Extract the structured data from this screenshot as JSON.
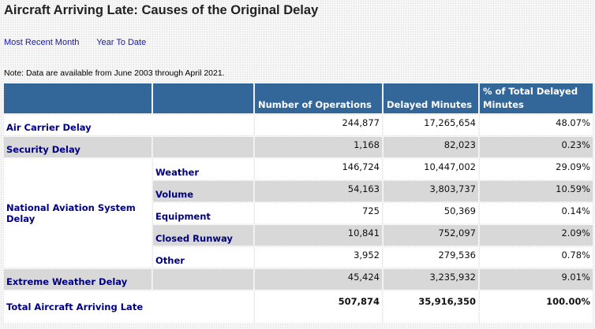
{
  "page": {
    "title": "Aircraft Arriving Late: Causes of the Original Delay",
    "links": [
      "Most Recent Month",
      "Year To Date"
    ],
    "note": "Note: Data are available from June 2003 through April 2021."
  },
  "table": {
    "headers": [
      "",
      "",
      "Number of Operations",
      "Delayed Minutes",
      "% of Total Delayed Minutes"
    ],
    "rows": {
      "air_carrier": {
        "label": "Air Carrier Delay",
        "ops": "244,877",
        "minutes": "17,265,654",
        "pct": "48.07%"
      },
      "security": {
        "label": "Security Delay",
        "ops": "1,168",
        "minutes": "82,023",
        "pct": "0.23%"
      },
      "nas": {
        "label": "National Aviation System Delay",
        "sub": [
          {
            "label": "Weather",
            "ops": "146,724",
            "minutes": "10,447,002",
            "pct": "29.09%"
          },
          {
            "label": "Volume",
            "ops": "54,163",
            "minutes": "3,803,737",
            "pct": "10.59%"
          },
          {
            "label": "Equipment",
            "ops": "725",
            "minutes": "50,369",
            "pct": "0.14%"
          },
          {
            "label": "Closed Runway",
            "ops": "10,841",
            "minutes": "752,097",
            "pct": "2.09%"
          },
          {
            "label": "Other",
            "ops": "3,952",
            "minutes": "279,536",
            "pct": "0.78%"
          }
        ]
      },
      "extreme_weather": {
        "label": "Extreme Weather Delay",
        "ops": "45,424",
        "minutes": "3,235,932",
        "pct": "9.01%"
      },
      "total": {
        "label": "Total Aircraft Arriving Late",
        "ops": "507,874",
        "minutes": "35,916,350",
        "pct": "100.00%"
      }
    }
  }
}
